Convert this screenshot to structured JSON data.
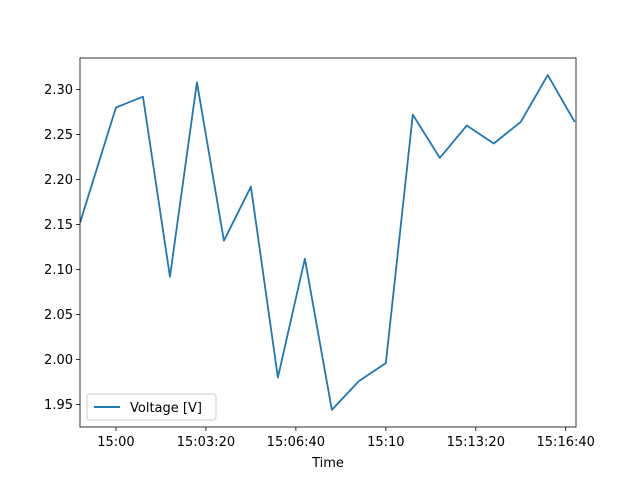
{
  "chart_data": {
    "type": "line",
    "title": "",
    "xlabel": "Time",
    "ylabel": "",
    "grid": false,
    "legend_position": "lower-left",
    "x_unit": "seconds since 14:58:40",
    "xlim": [
      0,
      1780
    ],
    "ylim": [
      1.925,
      2.335
    ],
    "x_ticks": [
      {
        "value": 80,
        "label": "15:00"
      },
      {
        "value": 280,
        "label": "15:03:20"
      },
      {
        "value": 480,
        "label": "15:06:40"
      },
      {
        "value": 680,
        "label": "15:10"
      },
      {
        "value": 880,
        "label": "15:13:20"
      },
      {
        "value": 1080,
        "label": "15:16:40"
      }
    ],
    "y_ticks": [
      {
        "value": 1.95,
        "label": "1.95"
      },
      {
        "value": 2.0,
        "label": "2.00"
      },
      {
        "value": 2.05,
        "label": "2.05"
      },
      {
        "value": 2.1,
        "label": "2.10"
      },
      {
        "value": 2.15,
        "label": "2.15"
      },
      {
        "value": 2.2,
        "label": "2.20"
      },
      {
        "value": 2.25,
        "label": "2.25"
      },
      {
        "value": 2.3,
        "label": "2.30"
      }
    ],
    "series": [
      {
        "name": "Voltage [V]",
        "color": "#1f77b4",
        "x": [
          0,
          80,
          140,
          200,
          260,
          320,
          380,
          440,
          500,
          560,
          620,
          680,
          740,
          800,
          860,
          920,
          980,
          1040,
          1100
        ],
        "values": [
          2.152,
          2.28,
          2.292,
          2.092,
          2.308,
          2.132,
          2.192,
          1.98,
          2.112,
          1.944,
          1.976,
          1.996,
          2.272,
          2.224,
          2.26,
          2.24,
          2.264,
          2.316,
          2.264
        ]
      }
    ]
  }
}
